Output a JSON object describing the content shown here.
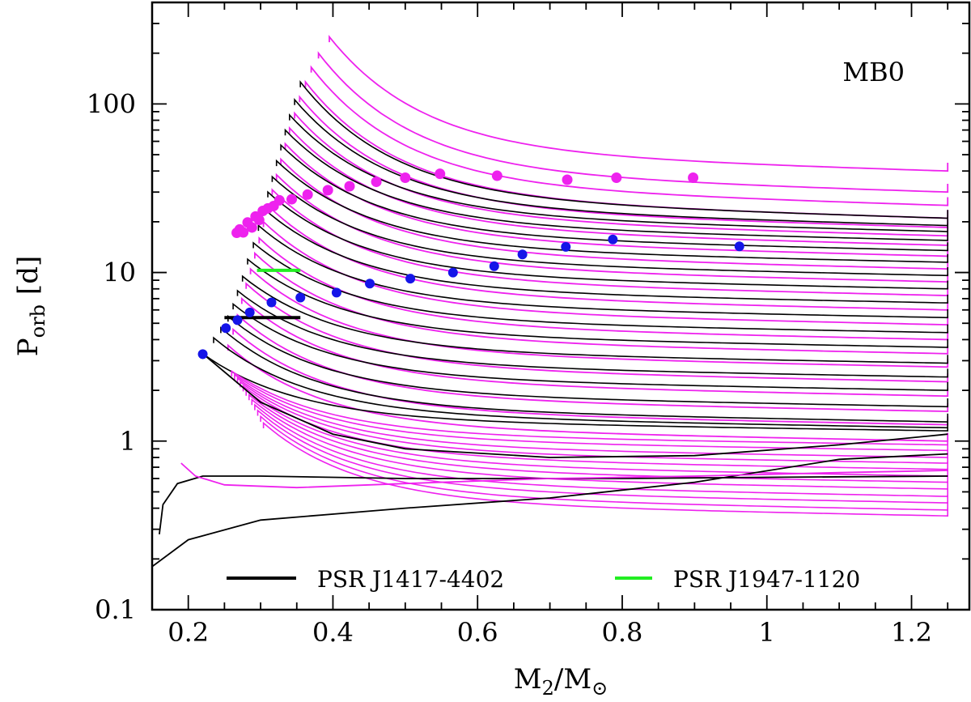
{
  "chart_data": {
    "type": "line",
    "panel_label": "MB0",
    "xlabel": {
      "main": "M",
      "sub": "2",
      "sep": "/M",
      "sun": "⊙"
    },
    "ylabel": {
      "main": "P",
      "sub": "orb",
      "unit": "[d]"
    },
    "xlim": [
      0.15,
      1.28
    ],
    "ylim_log": [
      0.1,
      400
    ],
    "y_scale": "log",
    "x_ticks": [
      0.2,
      0.4,
      0.6,
      0.8,
      1.0,
      1.2
    ],
    "x_tick_labels": [
      "0.2",
      "0.4",
      "0.6",
      "0.8",
      "1",
      "1.2"
    ],
    "y_ticks": [
      0.1,
      1,
      10,
      100
    ],
    "y_tick_labels": [
      "0.1",
      "1",
      "10",
      "100"
    ],
    "track_colors": {
      "black": "#000000",
      "magenta": "#ee22ee"
    },
    "dot_colors": {
      "magenta": "#ee22ee",
      "blue": "#1515e8"
    },
    "tracks_black": [
      {
        "x_start": 0.22,
        "p_start": 3.3,
        "p_end": 1.15
      },
      {
        "x_start": 0.235,
        "p_start": 4.1,
        "p_end": 1.2
      },
      {
        "x_start": 0.245,
        "p_start": 4.7,
        "p_end": 1.3
      },
      {
        "x_start": 0.255,
        "p_start": 5.5,
        "p_end": 1.6
      },
      {
        "x_start": 0.262,
        "p_start": 6.5,
        "p_end": 2.0
      },
      {
        "x_start": 0.268,
        "p_start": 7.8,
        "p_end": 2.4
      },
      {
        "x_start": 0.275,
        "p_start": 9.5,
        "p_end": 2.9
      },
      {
        "x_start": 0.282,
        "p_start": 12,
        "p_end": 3.6
      },
      {
        "x_start": 0.29,
        "p_start": 15,
        "p_end": 4.4
      },
      {
        "x_start": 0.297,
        "p_start": 19,
        "p_end": 5.4
      },
      {
        "x_start": 0.304,
        "p_start": 24,
        "p_end": 6.6
      },
      {
        "x_start": 0.31,
        "p_start": 30,
        "p_end": 8.0
      },
      {
        "x_start": 0.316,
        "p_start": 37,
        "p_end": 9.6
      },
      {
        "x_start": 0.322,
        "p_start": 46,
        "p_end": 11.5
      },
      {
        "x_start": 0.328,
        "p_start": 57,
        "p_end": 13.5
      },
      {
        "x_start": 0.334,
        "p_start": 70,
        "p_end": 15.5
      },
      {
        "x_start": 0.34,
        "p_start": 86,
        "p_end": 17.5
      },
      {
        "x_start": 0.347,
        "p_start": 106,
        "p_end": 19
      },
      {
        "x_start": 0.355,
        "p_start": 135,
        "p_end": 21
      }
    ],
    "tracks_magenta": [
      {
        "x_start": 0.255,
        "p_start": 3.7,
        "p_end": 1.0
      },
      {
        "x_start": 0.262,
        "p_start": 4.6,
        "p_end": 1.25
      },
      {
        "x_start": 0.268,
        "p_start": 5.6,
        "p_end": 1.5
      },
      {
        "x_start": 0.274,
        "p_start": 7.0,
        "p_end": 1.85
      },
      {
        "x_start": 0.28,
        "p_start": 8.6,
        "p_end": 2.25
      },
      {
        "x_start": 0.286,
        "p_start": 10.5,
        "p_end": 2.75
      },
      {
        "x_start": 0.292,
        "p_start": 13,
        "p_end": 3.3
      },
      {
        "x_start": 0.298,
        "p_start": 16,
        "p_end": 4.0
      },
      {
        "x_start": 0.304,
        "p_start": 20,
        "p_end": 4.9
      },
      {
        "x_start": 0.31,
        "p_start": 25,
        "p_end": 6.0
      },
      {
        "x_start": 0.316,
        "p_start": 31,
        "p_end": 7.3
      },
      {
        "x_start": 0.322,
        "p_start": 38,
        "p_end": 8.8
      },
      {
        "x_start": 0.328,
        "p_start": 47,
        "p_end": 10.5
      },
      {
        "x_start": 0.334,
        "p_start": 58,
        "p_end": 12.5
      },
      {
        "x_start": 0.34,
        "p_start": 72,
        "p_end": 14.5
      },
      {
        "x_start": 0.347,
        "p_start": 88,
        "p_end": 16.5
      },
      {
        "x_start": 0.354,
        "p_start": 110,
        "p_end": 18.5
      },
      {
        "x_start": 0.362,
        "p_start": 135,
        "p_end": 21
      },
      {
        "x_start": 0.37,
        "p_start": 165,
        "p_end": 25
      },
      {
        "x_start": 0.38,
        "p_start": 200,
        "p_end": 30
      },
      {
        "x_start": 0.395,
        "p_start": 250,
        "p_end": 40
      }
    ],
    "tracks_magenta_low": [
      {
        "p_end": 0.95
      },
      {
        "p_end": 0.88
      },
      {
        "p_end": 0.8
      },
      {
        "p_end": 0.74
      },
      {
        "p_end": 0.68
      },
      {
        "p_end": 0.62
      },
      {
        "p_end": 0.57
      },
      {
        "p_end": 0.52
      },
      {
        "p_end": 0.47
      },
      {
        "p_end": 0.43
      },
      {
        "p_end": 0.39
      },
      {
        "p_end": 0.36
      }
    ],
    "special_tracks": [
      {
        "name": "low-black-flat",
        "color": "black",
        "points": [
          [
            0.16,
            0.28
          ],
          [
            0.165,
            0.42
          ],
          [
            0.185,
            0.56
          ],
          [
            0.22,
            0.62
          ],
          [
            0.3,
            0.62
          ],
          [
            0.5,
            0.6
          ],
          [
            0.8,
            0.6
          ],
          [
            1.0,
            0.61
          ],
          [
            1.25,
            0.62
          ]
        ]
      },
      {
        "name": "low-black-rising",
        "color": "black",
        "points": [
          [
            0.15,
            0.18
          ],
          [
            0.2,
            0.26
          ],
          [
            0.3,
            0.34
          ],
          [
            0.5,
            0.4
          ],
          [
            0.7,
            0.46
          ],
          [
            0.9,
            0.57
          ],
          [
            1.1,
            0.78
          ],
          [
            1.25,
            0.84
          ]
        ]
      },
      {
        "name": "low-black-knee",
        "color": "black",
        "points": [
          [
            0.22,
            3.3
          ],
          [
            0.3,
            1.7
          ],
          [
            0.4,
            1.1
          ],
          [
            0.5,
            0.9
          ],
          [
            0.7,
            0.8
          ],
          [
            0.9,
            0.82
          ],
          [
            1.1,
            0.95
          ],
          [
            1.25,
            1.1
          ]
        ]
      },
      {
        "name": "low-magenta",
        "color": "magenta",
        "points": [
          [
            0.19,
            0.74
          ],
          [
            0.21,
            0.62
          ],
          [
            0.25,
            0.55
          ],
          [
            0.35,
            0.53
          ],
          [
            0.5,
            0.56
          ],
          [
            0.7,
            0.6
          ],
          [
            0.9,
            0.62
          ],
          [
            1.1,
            0.65
          ],
          [
            1.25,
            0.67
          ]
        ]
      }
    ],
    "dots_magenta": [
      {
        "m2": 0.267,
        "p": 17.2
      },
      {
        "m2": 0.271,
        "p": 18.0
      },
      {
        "m2": 0.276,
        "p": 17.3
      },
      {
        "m2": 0.282,
        "p": 19.8
      },
      {
        "m2": 0.288,
        "p": 18.5
      },
      {
        "m2": 0.293,
        "p": 21.5
      },
      {
        "m2": 0.298,
        "p": 20.5
      },
      {
        "m2": 0.303,
        "p": 23.2
      },
      {
        "m2": 0.31,
        "p": 24.0
      },
      {
        "m2": 0.318,
        "p": 24.8
      },
      {
        "m2": 0.326,
        "p": 26.8
      },
      {
        "m2": 0.343,
        "p": 27.2
      },
      {
        "m2": 0.365,
        "p": 29.0
      },
      {
        "m2": 0.393,
        "p": 30.8
      },
      {
        "m2": 0.423,
        "p": 32.5
      },
      {
        "m2": 0.46,
        "p": 34.5
      },
      {
        "m2": 0.5,
        "p": 36.5
      },
      {
        "m2": 0.548,
        "p": 38.5
      },
      {
        "m2": 0.627,
        "p": 37.5
      },
      {
        "m2": 0.724,
        "p": 35.5
      },
      {
        "m2": 0.792,
        "p": 36.5
      },
      {
        "m2": 0.898,
        "p": 36.5
      }
    ],
    "dots_blue": [
      {
        "m2": 0.22,
        "p": 3.28
      },
      {
        "m2": 0.252,
        "p": 4.68
      },
      {
        "m2": 0.268,
        "p": 5.22
      },
      {
        "m2": 0.285,
        "p": 5.8
      },
      {
        "m2": 0.315,
        "p": 6.65
      },
      {
        "m2": 0.355,
        "p": 7.1
      },
      {
        "m2": 0.405,
        "p": 7.6
      },
      {
        "m2": 0.451,
        "p": 8.6
      },
      {
        "m2": 0.507,
        "p": 9.2
      },
      {
        "m2": 0.566,
        "p": 10.0
      },
      {
        "m2": 0.623,
        "p": 10.9
      },
      {
        "m2": 0.662,
        "p": 12.8
      },
      {
        "m2": 0.722,
        "p": 14.2
      },
      {
        "m2": 0.787,
        "p": 15.7
      },
      {
        "m2": 0.962,
        "p": 14.3
      }
    ],
    "observed": [
      {
        "name": "PSR J1417-4402",
        "color": "#000000",
        "m2_range": [
          0.25,
          0.355
        ],
        "p": 5.4
      },
      {
        "name": "PSR J1947-1120",
        "color": "#22ee22",
        "m2_range": [
          0.295,
          0.355
        ],
        "p": 10.3
      }
    ],
    "legend": [
      {
        "label": "PSR J1417-4402",
        "color": "#000000"
      },
      {
        "label": "PSR J1947-1120",
        "color": "#22ee22"
      }
    ]
  }
}
